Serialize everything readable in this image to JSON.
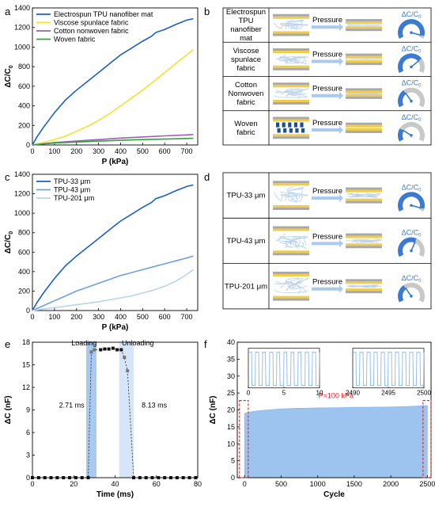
{
  "panel_letters": {
    "a": "a",
    "b": "b",
    "c": "c",
    "d": "d",
    "e": "e",
    "f": "f"
  },
  "chart_data": [
    {
      "id": "a",
      "type": "line",
      "xlabel": "P (kPa)",
      "ylabel": "ΔC/C0",
      "xlim": [
        0,
        750
      ],
      "ylim": [
        0,
        1400
      ],
      "xticks": [
        0,
        100,
        200,
        300,
        400,
        500,
        600,
        700
      ],
      "yticks": [
        0,
        200,
        400,
        600,
        800,
        1000,
        1200,
        1400
      ],
      "legend": "top-left",
      "series": [
        {
          "name": "Electrospun TPU nanofiber mat",
          "color": "#1a5fc8",
          "x": [
            0,
            20,
            50,
            100,
            150,
            200,
            250,
            300,
            350,
            400,
            450,
            500,
            540,
            560,
            600,
            650,
            700,
            730
          ],
          "y": [
            0,
            80,
            180,
            330,
            460,
            560,
            650,
            740,
            830,
            920,
            990,
            1060,
            1110,
            1150,
            1180,
            1230,
            1275,
            1290
          ]
        },
        {
          "name": "Viscose spunlace fabric",
          "color": "#f2e230",
          "x": [
            0,
            50,
            100,
            150,
            200,
            250,
            300,
            350,
            400,
            450,
            500,
            550,
            600,
            650,
            700,
            730
          ],
          "y": [
            0,
            25,
            55,
            90,
            140,
            190,
            250,
            320,
            400,
            480,
            560,
            650,
            740,
            830,
            920,
            975
          ]
        },
        {
          "name": "Cotton nonwoven fabric",
          "color": "#a25bb5",
          "x": [
            0,
            100,
            200,
            300,
            400,
            500,
            600,
            700,
            730
          ],
          "y": [
            0,
            25,
            40,
            55,
            70,
            82,
            93,
            103,
            107
          ]
        },
        {
          "name": "Woven fabric",
          "color": "#2fa43a",
          "x": [
            0,
            100,
            200,
            300,
            400,
            500,
            600,
            700,
            730
          ],
          "y": [
            0,
            20,
            30,
            40,
            48,
            55,
            60,
            66,
            68
          ]
        }
      ]
    },
    {
      "id": "c",
      "type": "line",
      "xlabel": "P (kPa)",
      "ylabel": "ΔC/C0",
      "xlim": [
        0,
        750
      ],
      "ylim": [
        0,
        1400
      ],
      "xticks": [
        0,
        100,
        200,
        300,
        400,
        500,
        600,
        700
      ],
      "yticks": [
        0,
        200,
        400,
        600,
        800,
        1000,
        1200,
        1400
      ],
      "legend": "top-left",
      "series": [
        {
          "name": "TPU-33 μm",
          "color": "#1a5fc8",
          "x": [
            0,
            20,
            50,
            100,
            150,
            200,
            250,
            300,
            350,
            400,
            450,
            500,
            540,
            560,
            600,
            650,
            700,
            730
          ],
          "y": [
            0,
            80,
            180,
            330,
            460,
            560,
            650,
            740,
            830,
            920,
            990,
            1060,
            1110,
            1150,
            1180,
            1230,
            1275,
            1290
          ]
        },
        {
          "name": "TPU-43 μm",
          "color": "#6fa1dd",
          "x": [
            0,
            50,
            100,
            150,
            200,
            250,
            300,
            350,
            400,
            450,
            500,
            550,
            600,
            650,
            700,
            730
          ],
          "y": [
            0,
            50,
            100,
            150,
            200,
            240,
            280,
            320,
            360,
            390,
            420,
            450,
            480,
            510,
            540,
            560
          ]
        },
        {
          "name": "TPU-201 μm",
          "color": "#b8d2f0",
          "x": [
            0,
            50,
            100,
            150,
            200,
            250,
            300,
            350,
            400,
            450,
            500,
            550,
            600,
            650,
            700,
            730
          ],
          "y": [
            0,
            15,
            30,
            45,
            60,
            75,
            90,
            110,
            130,
            150,
            180,
            210,
            250,
            300,
            370,
            420
          ]
        }
      ]
    },
    {
      "id": "e",
      "type": "line",
      "xlabel": "Time (ms)",
      "ylabel": "ΔC (nF)",
      "xlim": [
        0,
        80
      ],
      "ylim": [
        0,
        18
      ],
      "xticks": [
        0,
        20,
        40,
        60,
        80
      ],
      "yticks": [
        0,
        3,
        6,
        9,
        12,
        15,
        18
      ],
      "annotations": {
        "loading": "Loading",
        "unloading": "Unloading",
        "t_load": "2.71 ms",
        "t_unload": "8.13 ms"
      },
      "loading_band": [
        26,
        31
      ],
      "unloading_band": [
        42,
        49
      ],
      "series": [
        {
          "name": "",
          "color": "#000000",
          "x": [
            0,
            3,
            6,
            9,
            12,
            15,
            18,
            21,
            24,
            27,
            28.5,
            30,
            33,
            35,
            37,
            39,
            41,
            43,
            44.5,
            46,
            49,
            52,
            55,
            58,
            61,
            64,
            67,
            70,
            73,
            76,
            79
          ],
          "y": [
            0,
            0,
            0,
            0,
            0,
            0,
            0,
            0,
            0,
            0,
            16.7,
            17.0,
            17.0,
            17.1,
            17.1,
            17.2,
            17.0,
            17.0,
            16.0,
            14.2,
            0,
            0,
            0,
            0,
            0,
            0,
            0,
            0,
            0,
            0,
            0
          ]
        }
      ]
    },
    {
      "id": "f",
      "type": "area",
      "xlabel": "Cycle",
      "ylabel": "ΔC (nF)",
      "xlim": [
        -100,
        2550
      ],
      "ylim": [
        0,
        40
      ],
      "xticks": [
        0,
        500,
        1000,
        1500,
        2000,
        2500
      ],
      "yticks": [
        0,
        5,
        10,
        15,
        20,
        25,
        30,
        35,
        40
      ],
      "annotation": "P=100 kPa",
      "envelope": {
        "x": [
          0,
          100,
          200,
          300,
          500,
          700,
          1000,
          1300,
          1500,
          1700,
          2000,
          2200,
          2400,
          2500
        ],
        "y": [
          19.0,
          19.5,
          19.8,
          20.0,
          20.3,
          20.5,
          20.6,
          20.7,
          20.8,
          20.8,
          20.9,
          21.0,
          21.2,
          21.3
        ]
      },
      "insets": [
        {
          "xlim": [
            0,
            10
          ],
          "xticks": [
            0,
            5,
            10
          ]
        },
        {
          "xlim": [
            2490,
            2500
          ],
          "xticks": [
            2490,
            2495,
            2500
          ]
        }
      ]
    }
  ],
  "diagram_b": {
    "rows": [
      {
        "label": "Electrospun TPU nanofiber mat",
        "arrow": "Pressure",
        "gauge": "ΔC/C0",
        "level": 0.95
      },
      {
        "label": "Viscose spunlace fabric",
        "arrow": "Pressure",
        "gauge": "ΔC/C0",
        "level": 0.72
      },
      {
        "label": "Cotton Nonwoven fabric",
        "arrow": "Pressure",
        "gauge": "ΔC/C0",
        "level": 0.35
      },
      {
        "label": "Woven fabric",
        "arrow": "Pressure",
        "gauge": "ΔC/C0",
        "level": 0.25
      }
    ]
  },
  "diagram_d": {
    "rows": [
      {
        "label": "TPU-33 μm",
        "arrow": "Pressure",
        "gauge": "ΔC/C0",
        "level": 0.95
      },
      {
        "label": "TPU-43 μm",
        "arrow": "Pressure",
        "gauge": "ΔC/C0",
        "level": 0.6
      },
      {
        "label": "TPU-201 μm",
        "arrow": "Pressure",
        "gauge": "ΔC/C0",
        "level": 0.35
      }
    ]
  },
  "colors": {
    "accent": "#3b7ad0",
    "gauge_gray": "#c8c8c8",
    "layer_yellow": "#f1cc4a",
    "layer_gray": "#a8a8a8",
    "fiber": "#bcd3ee",
    "weave_dark": "#1d4f8c"
  }
}
